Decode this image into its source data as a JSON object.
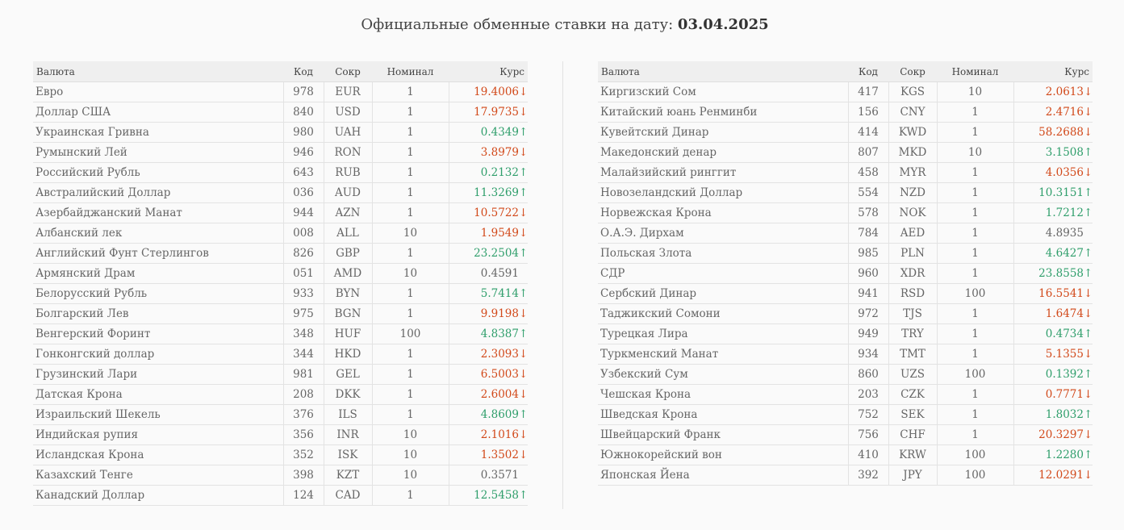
{
  "header": {
    "title_prefix": "Официальные обменные ставки на дату:",
    "date": "03.04.2025"
  },
  "columns": {
    "name": "Валюта",
    "code": "Код",
    "short": "Сокр",
    "nominal": "Номинал",
    "rate": "Курс"
  },
  "colors": {
    "up": "#2f9e6b",
    "down": "#d2491a",
    "flat": "#666666"
  },
  "tables": [
    {
      "rows": [
        {
          "name": "Евро",
          "code": "978",
          "short": "EUR",
          "nominal": "1",
          "rate": "19.4006",
          "trend": "down"
        },
        {
          "name": "Доллар США",
          "code": "840",
          "short": "USD",
          "nominal": "1",
          "rate": "17.9735",
          "trend": "down"
        },
        {
          "name": "Украинская Гривна",
          "code": "980",
          "short": "UAH",
          "nominal": "1",
          "rate": "0.4349",
          "trend": "up"
        },
        {
          "name": "Румынский Лей",
          "code": "946",
          "short": "RON",
          "nominal": "1",
          "rate": "3.8979",
          "trend": "down"
        },
        {
          "name": "Российский Рубль",
          "code": "643",
          "short": "RUB",
          "nominal": "1",
          "rate": "0.2132",
          "trend": "up"
        },
        {
          "name": "Австралийский Доллар",
          "code": "036",
          "short": "AUD",
          "nominal": "1",
          "rate": "11.3269",
          "trend": "up"
        },
        {
          "name": "Азербайджанский Манат",
          "code": "944",
          "short": "AZN",
          "nominal": "1",
          "rate": "10.5722",
          "trend": "down"
        },
        {
          "name": "Албанский лек",
          "code": "008",
          "short": "ALL",
          "nominal": "10",
          "rate": "1.9549",
          "trend": "down"
        },
        {
          "name": "Английский Фунт Стерлингов",
          "code": "826",
          "short": "GBP",
          "nominal": "1",
          "rate": "23.2504",
          "trend": "up"
        },
        {
          "name": "Армянский Драм",
          "code": "051",
          "short": "AMD",
          "nominal": "10",
          "rate": "0.4591",
          "trend": "flat"
        },
        {
          "name": "Белорусский Рубль",
          "code": "933",
          "short": "BYN",
          "nominal": "1",
          "rate": "5.7414",
          "trend": "up"
        },
        {
          "name": "Болгарский Лев",
          "code": "975",
          "short": "BGN",
          "nominal": "1",
          "rate": "9.9198",
          "trend": "down"
        },
        {
          "name": "Венгерский Форинт",
          "code": "348",
          "short": "HUF",
          "nominal": "100",
          "rate": "4.8387",
          "trend": "up"
        },
        {
          "name": "Гонконгский доллар",
          "code": "344",
          "short": "HKD",
          "nominal": "1",
          "rate": "2.3093",
          "trend": "down"
        },
        {
          "name": "Грузинский Лари",
          "code": "981",
          "short": "GEL",
          "nominal": "1",
          "rate": "6.5003",
          "trend": "down"
        },
        {
          "name": "Датская Крона",
          "code": "208",
          "short": "DKK",
          "nominal": "1",
          "rate": "2.6004",
          "trend": "down"
        },
        {
          "name": "Израильский Шекель",
          "code": "376",
          "short": "ILS",
          "nominal": "1",
          "rate": "4.8609",
          "trend": "up"
        },
        {
          "name": "Индийская рупия",
          "code": "356",
          "short": "INR",
          "nominal": "10",
          "rate": "2.1016",
          "trend": "down"
        },
        {
          "name": "Исландская Крона",
          "code": "352",
          "short": "ISK",
          "nominal": "10",
          "rate": "1.3502",
          "trend": "down"
        },
        {
          "name": "Казахский Тенге",
          "code": "398",
          "short": "KZT",
          "nominal": "10",
          "rate": "0.3571",
          "trend": "flat"
        },
        {
          "name": "Канадский Доллар",
          "code": "124",
          "short": "CAD",
          "nominal": "1",
          "rate": "12.5458",
          "trend": "up"
        }
      ]
    },
    {
      "rows": [
        {
          "name": "Киргизский Сом",
          "code": "417",
          "short": "KGS",
          "nominal": "10",
          "rate": "2.0613",
          "trend": "down"
        },
        {
          "name": "Китайский юань Ренминби",
          "code": "156",
          "short": "CNY",
          "nominal": "1",
          "rate": "2.4716",
          "trend": "down"
        },
        {
          "name": "Кувейтский Динар",
          "code": "414",
          "short": "KWD",
          "nominal": "1",
          "rate": "58.2688",
          "trend": "down"
        },
        {
          "name": "Македонский денар",
          "code": "807",
          "short": "MKD",
          "nominal": "10",
          "rate": "3.1508",
          "trend": "up"
        },
        {
          "name": "Малайзийский ринггит",
          "code": "458",
          "short": "MYR",
          "nominal": "1",
          "rate": "4.0356",
          "trend": "down"
        },
        {
          "name": "Новозеландский Доллар",
          "code": "554",
          "short": "NZD",
          "nominal": "1",
          "rate": "10.3151",
          "trend": "up"
        },
        {
          "name": "Норвежская Крона",
          "code": "578",
          "short": "NOK",
          "nominal": "1",
          "rate": "1.7212",
          "trend": "up"
        },
        {
          "name": "О.А.Э. Дирхам",
          "code": "784",
          "short": "AED",
          "nominal": "1",
          "rate": "4.8935",
          "trend": "flat"
        },
        {
          "name": "Польская Злота",
          "code": "985",
          "short": "PLN",
          "nominal": "1",
          "rate": "4.6427",
          "trend": "up"
        },
        {
          "name": "СДР",
          "code": "960",
          "short": "XDR",
          "nominal": "1",
          "rate": "23.8558",
          "trend": "up"
        },
        {
          "name": "Сербский Динар",
          "code": "941",
          "short": "RSD",
          "nominal": "100",
          "rate": "16.5541",
          "trend": "down"
        },
        {
          "name": "Таджикский Сомони",
          "code": "972",
          "short": "TJS",
          "nominal": "1",
          "rate": "1.6474",
          "trend": "down"
        },
        {
          "name": "Турецкая Лира",
          "code": "949",
          "short": "TRY",
          "nominal": "1",
          "rate": "0.4734",
          "trend": "up"
        },
        {
          "name": "Туркменский Манат",
          "code": "934",
          "short": "TMT",
          "nominal": "1",
          "rate": "5.1355",
          "trend": "down"
        },
        {
          "name": "Узбекский Сум",
          "code": "860",
          "short": "UZS",
          "nominal": "100",
          "rate": "0.1392",
          "trend": "up"
        },
        {
          "name": "Чешская Крона",
          "code": "203",
          "short": "CZK",
          "nominal": "1",
          "rate": "0.7771",
          "trend": "down"
        },
        {
          "name": "Шведская Крона",
          "code": "752",
          "short": "SEK",
          "nominal": "1",
          "rate": "1.8032",
          "trend": "up"
        },
        {
          "name": "Швейцарский Франк",
          "code": "756",
          "short": "CHF",
          "nominal": "1",
          "rate": "20.3297",
          "trend": "down"
        },
        {
          "name": "Южнокорейский вон",
          "code": "410",
          "short": "KRW",
          "nominal": "100",
          "rate": "1.2280",
          "trend": "up"
        },
        {
          "name": "Японская Йена",
          "code": "392",
          "short": "JPY",
          "nominal": "100",
          "rate": "12.0291",
          "trend": "down"
        }
      ]
    }
  ]
}
